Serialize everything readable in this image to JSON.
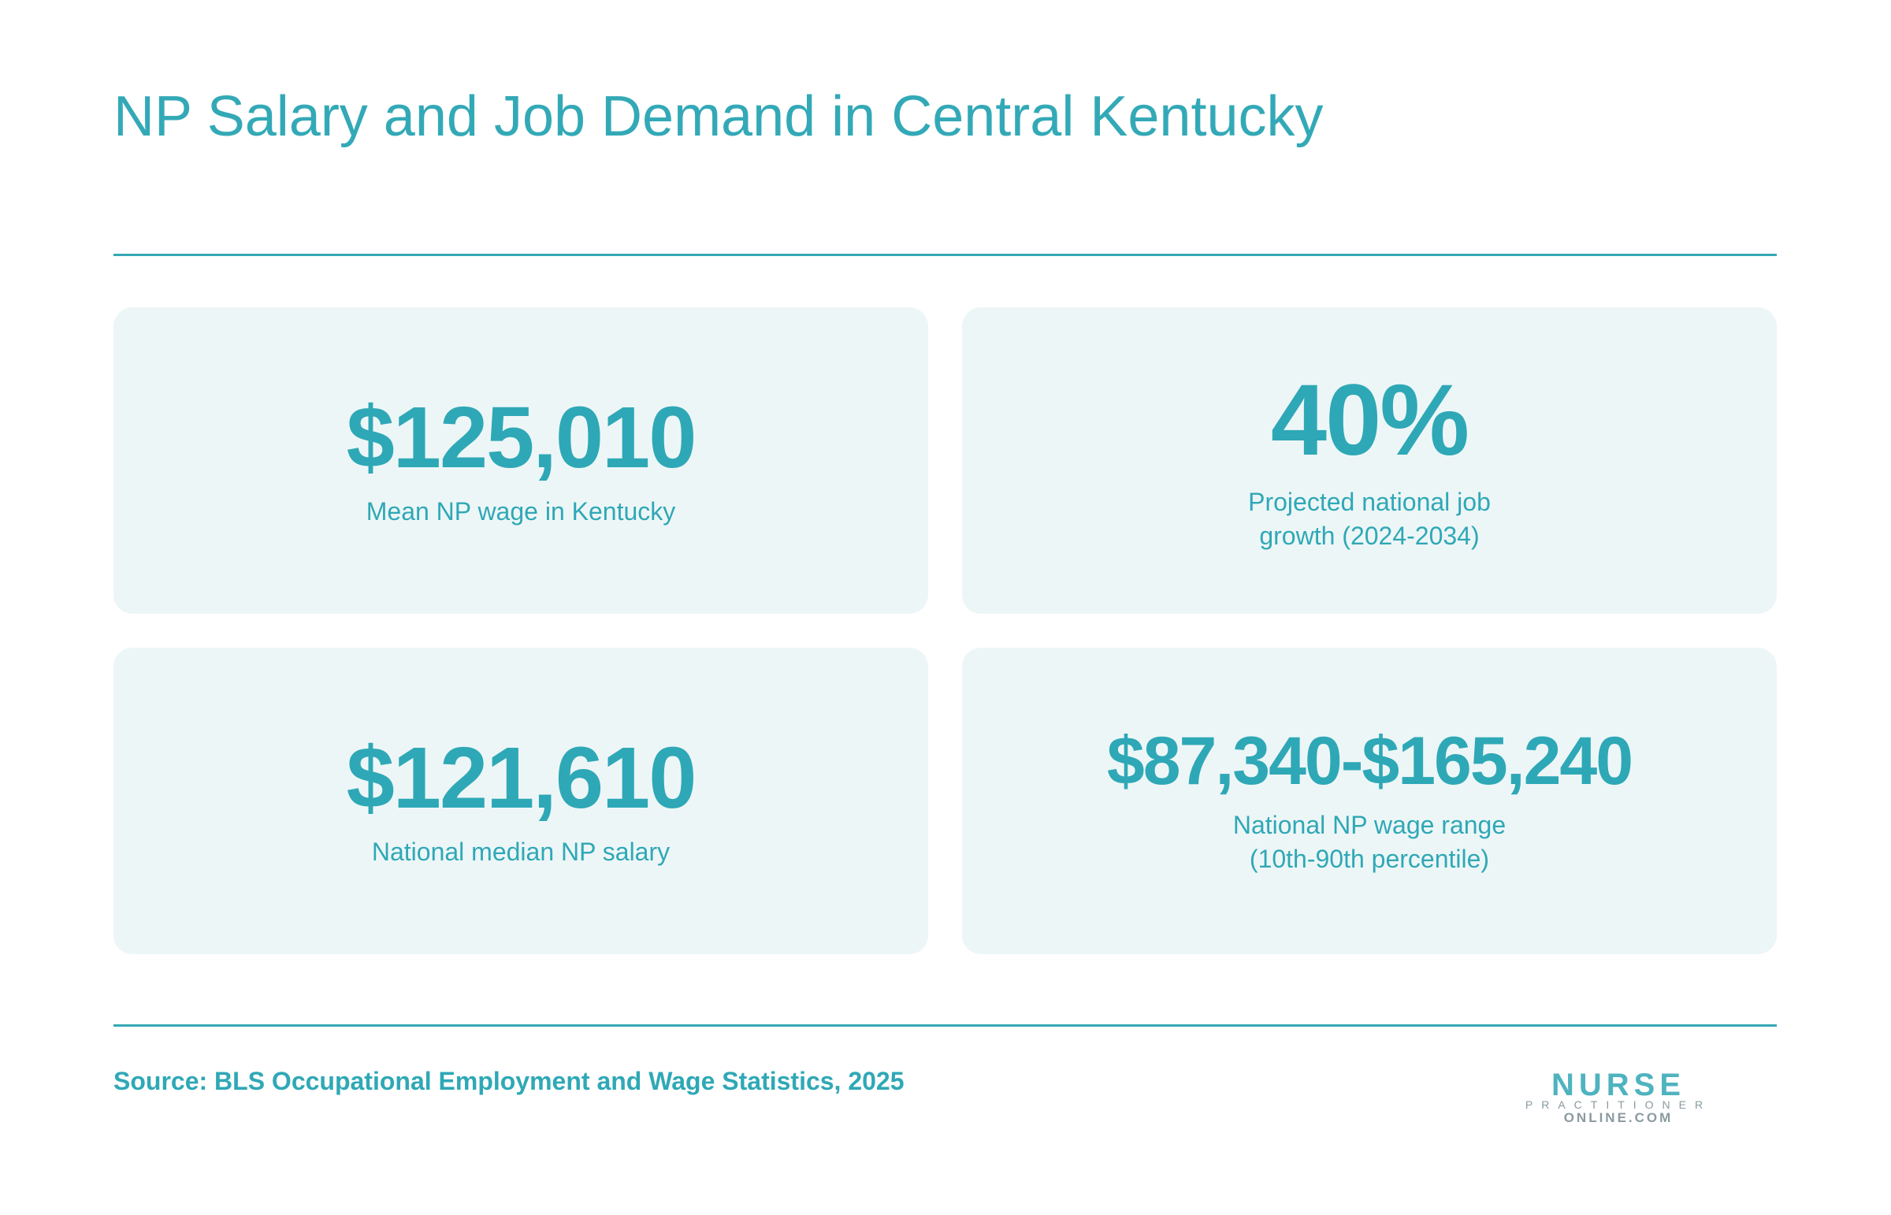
{
  "header": {
    "title": "NP Salary and Job Demand in Central Kentucky"
  },
  "cards": [
    {
      "value": "$125,010",
      "label_lines": [
        "Mean NP wage in Kentucky"
      ]
    },
    {
      "value": "40%",
      "label_lines": [
        "Projected national job",
        "growth (2024-2034)"
      ]
    },
    {
      "value": "$121,610",
      "label_lines": [
        "National median NP salary"
      ]
    },
    {
      "value": "$87,340-$165,240",
      "label_lines": [
        "National NP wage range",
        "(10th-90th percentile)"
      ]
    }
  ],
  "footer": {
    "source": "Source: BLS Occupational Employment and Wage Statistics, 2025",
    "logo": {
      "top": "NURSE",
      "middle": "PRACTITIONER",
      "bottom": "ONLINE.COM"
    }
  }
}
